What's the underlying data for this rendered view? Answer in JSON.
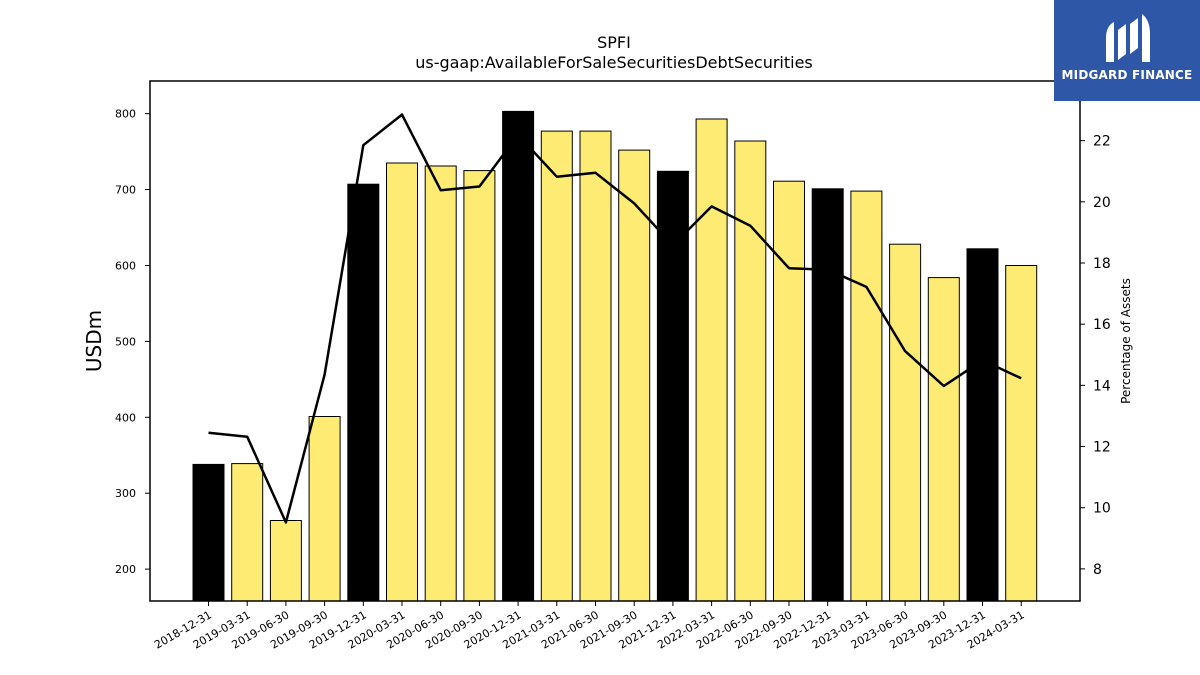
{
  "logo": {
    "text": "MIDGARD FINANCE",
    "icon": "midgard-logo-icon",
    "background": "#2f57a8"
  },
  "chart_data": {
    "type": "bar",
    "title": "SPFI",
    "subtitle": "us-gaap:AvailableForSaleSecuritiesDebtSecurities",
    "ylabel": "USDm",
    "y2label": "Percentage of Assets",
    "ylim": [
      158,
      843
    ],
    "y2lim": [
      6.95,
      23.95
    ],
    "yticks": [
      200,
      300,
      400,
      500,
      600,
      700,
      800
    ],
    "y2ticks": [
      8,
      10,
      12,
      14,
      16,
      18,
      20,
      22
    ],
    "grid": false,
    "categories": [
      "2018-12-31",
      "2019-03-31",
      "2019-06-30",
      "2019-09-30",
      "2019-12-31",
      "2020-03-31",
      "2020-06-30",
      "2020-09-30",
      "2020-12-31",
      "2021-03-31",
      "2021-06-30",
      "2021-09-30",
      "2021-12-31",
      "2022-03-31",
      "2022-06-30",
      "2022-09-30",
      "2022-12-31",
      "2023-03-31",
      "2023-06-30",
      "2023-09-30",
      "2023-12-31",
      "2024-03-31"
    ],
    "series": [
      {
        "type": "bar",
        "axis": "left",
        "values": [
          338,
          339,
          264,
          401,
          707,
          735,
          731,
          725,
          803,
          777,
          777,
          752,
          724,
          793,
          764,
          711,
          701,
          698,
          628,
          584,
          622,
          600
        ],
        "colors": [
          "#000000",
          "#fdeb74",
          "#fdeb74",
          "#fdeb74",
          "#000000",
          "#fdeb74",
          "#fdeb74",
          "#fdeb74",
          "#000000",
          "#fdeb74",
          "#fdeb74",
          "#fdeb74",
          "#000000",
          "#fdeb74",
          "#fdeb74",
          "#fdeb74",
          "#000000",
          "#fdeb74",
          "#fdeb74",
          "#fdeb74",
          "#000000",
          "#fdeb74"
        ]
      },
      {
        "type": "line",
        "axis": "right",
        "color": "#000000",
        "values": [
          12.45,
          12.32,
          9.52,
          14.35,
          21.85,
          22.85,
          20.38,
          20.5,
          22.18,
          20.82,
          20.95,
          19.95,
          18.58,
          19.85,
          19.22,
          17.83,
          17.78,
          17.22,
          15.12,
          13.98,
          14.82,
          14.23
        ]
      }
    ]
  }
}
